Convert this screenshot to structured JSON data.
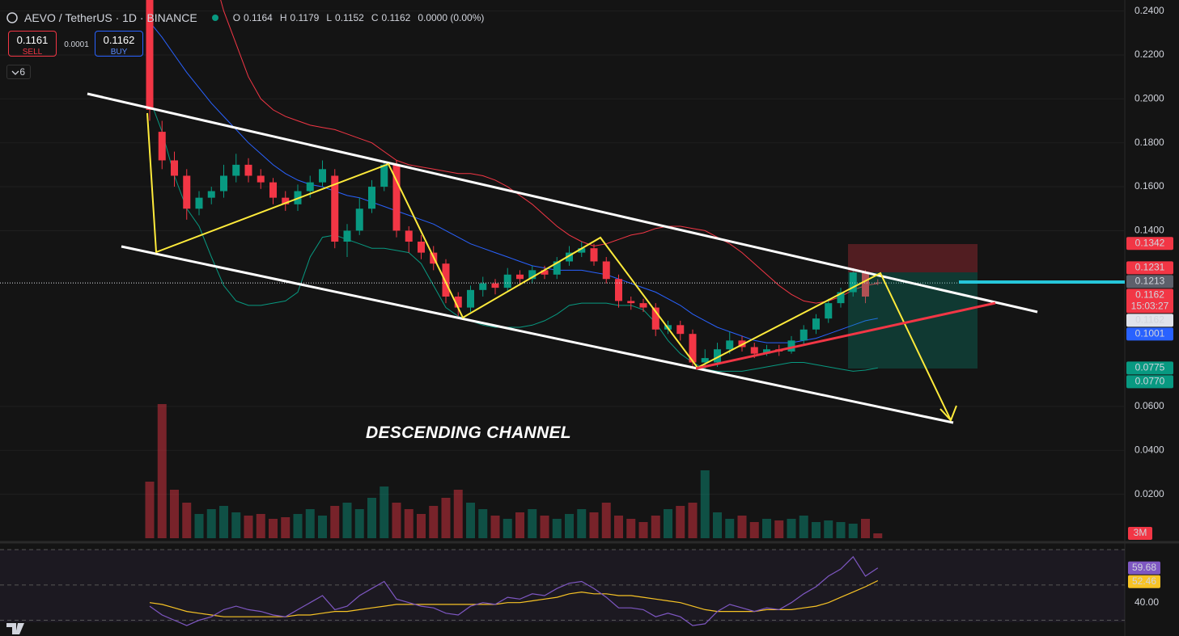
{
  "header": {
    "symbol": "AEVO / TetherUS · 1D · BINANCE",
    "ohlc_labels": [
      "O",
      "H",
      "L",
      "C"
    ],
    "change": "0.0000 (0.00%)"
  },
  "trade": {
    "sell_price": 0.1161,
    "sell": "SELL",
    "spread": 0.0001,
    "buy_price": 0.1162,
    "buy": "BUY",
    "indicators_count": 6
  },
  "chart_data": {
    "type": "candlestick",
    "up_color": "#089981",
    "down_color": "#f23645",
    "ylim": [
      0,
      0.245
    ],
    "yticks": [
      {
        "value": 0.24,
        "label": "0.2400"
      },
      {
        "value": 0.22,
        "label": "0.2200"
      },
      {
        "value": 0.2,
        "label": "0.2000"
      },
      {
        "value": 0.18,
        "label": "0.1800"
      },
      {
        "value": 0.16,
        "label": "0.1600"
      },
      {
        "value": 0.14,
        "label": "0.1400"
      },
      {
        "value": 0.06,
        "label": "0.0600"
      },
      {
        "value": 0.04,
        "label": "0.0400"
      },
      {
        "value": 0.02,
        "label": "0.0200"
      }
    ],
    "grid": true,
    "open": [
      0.245,
      0.185,
      0.172,
      0.165,
      0.15,
      0.155,
      0.158,
      0.165,
      0.17,
      0.165,
      0.162,
      0.155,
      0.152,
      0.158,
      0.162,
      0.165,
      0.135,
      0.14,
      0.15,
      0.16,
      0.17,
      0.14,
      0.135,
      0.13,
      0.125,
      0.11,
      0.105,
      0.113,
      0.116,
      0.114,
      0.12,
      0.118,
      0.122,
      0.12,
      0.126,
      0.13,
      0.132,
      0.126,
      0.118,
      0.108,
      0.107,
      0.105,
      0.095,
      0.097,
      0.093,
      0.08,
      0.08,
      0.086,
      0.09,
      0.087,
      0.084,
      0.086,
      0.085,
      0.09,
      0.095,
      0.1,
      0.107,
      0.112,
      0.121,
      0.1164
    ],
    "high": [
      0.245,
      0.19,
      0.176,
      0.168,
      0.158,
      0.16,
      0.17,
      0.175,
      0.173,
      0.168,
      0.164,
      0.158,
      0.161,
      0.165,
      0.172,
      0.168,
      0.143,
      0.155,
      0.163,
      0.172,
      0.172,
      0.142,
      0.138,
      0.133,
      0.127,
      0.112,
      0.115,
      0.119,
      0.118,
      0.123,
      0.122,
      0.124,
      0.124,
      0.128,
      0.133,
      0.135,
      0.134,
      0.128,
      0.12,
      0.11,
      0.109,
      0.107,
      0.099,
      0.099,
      0.095,
      0.086,
      0.089,
      0.094,
      0.092,
      0.089,
      0.088,
      0.088,
      0.092,
      0.097,
      0.102,
      0.109,
      0.114,
      0.123,
      0.122,
      0.1179
    ],
    "low": [
      0.19,
      0.168,
      0.16,
      0.145,
      0.147,
      0.152,
      0.155,
      0.162,
      0.162,
      0.159,
      0.152,
      0.149,
      0.149,
      0.155,
      0.16,
      0.132,
      0.128,
      0.138,
      0.148,
      0.158,
      0.137,
      0.13,
      0.127,
      0.122,
      0.107,
      0.101,
      0.103,
      0.11,
      0.111,
      0.112,
      0.115,
      0.116,
      0.118,
      0.118,
      0.124,
      0.128,
      0.124,
      0.116,
      0.105,
      0.104,
      0.103,
      0.092,
      0.093,
      0.09,
      0.078,
      0.077,
      0.078,
      0.084,
      0.085,
      0.082,
      0.083,
      0.083,
      0.084,
      0.088,
      0.093,
      0.098,
      0.105,
      0.11,
      0.107,
      0.1152
    ],
    "close": [
      0.195,
      0.172,
      0.165,
      0.15,
      0.155,
      0.158,
      0.165,
      0.17,
      0.165,
      0.162,
      0.155,
      0.152,
      0.158,
      0.162,
      0.168,
      0.135,
      0.14,
      0.15,
      0.16,
      0.17,
      0.14,
      0.135,
      0.13,
      0.125,
      0.11,
      0.105,
      0.113,
      0.116,
      0.114,
      0.12,
      0.118,
      0.122,
      0.12,
      0.126,
      0.13,
      0.132,
      0.126,
      0.118,
      0.108,
      0.107,
      0.105,
      0.095,
      0.097,
      0.093,
      0.08,
      0.082,
      0.086,
      0.09,
      0.087,
      0.084,
      0.086,
      0.085,
      0.09,
      0.095,
      0.1,
      0.107,
      0.112,
      0.121,
      0.11,
      0.1162
    ],
    "bollinger": {
      "upper": {
        "color": "#f23645",
        "values": [
          0.3,
          0.3,
          0.29,
          0.28,
          0.27,
          0.26,
          0.24,
          0.225,
          0.21,
          0.2,
          0.195,
          0.192,
          0.19,
          0.188,
          0.187,
          0.186,
          0.184,
          0.182,
          0.18,
          0.176,
          0.172,
          0.17,
          0.169,
          0.168,
          0.167,
          0.166,
          0.166,
          0.165,
          0.163,
          0.16,
          0.156,
          0.152,
          0.147,
          0.142,
          0.138,
          0.135,
          0.133,
          0.134,
          0.136,
          0.138,
          0.139,
          0.141,
          0.142,
          0.142,
          0.141,
          0.14,
          0.137,
          0.134,
          0.13,
          0.125,
          0.12,
          0.115,
          0.111,
          0.108,
          0.107,
          0.108,
          0.11,
          0.113,
          0.115,
          0.116
        ]
      },
      "middle": {
        "color": "#2962ff",
        "values": [
          0.235,
          0.228,
          0.22,
          0.212,
          0.205,
          0.198,
          0.192,
          0.186,
          0.18,
          0.175,
          0.17,
          0.166,
          0.163,
          0.161,
          0.16,
          0.158,
          0.156,
          0.155,
          0.153,
          0.151,
          0.149,
          0.147,
          0.145,
          0.143,
          0.14,
          0.137,
          0.134,
          0.132,
          0.13,
          0.128,
          0.126,
          0.124,
          0.123,
          0.122,
          0.122,
          0.122,
          0.121,
          0.12,
          0.118,
          0.116,
          0.114,
          0.112,
          0.109,
          0.106,
          0.102,
          0.099,
          0.096,
          0.094,
          0.092,
          0.09,
          0.089,
          0.089,
          0.089,
          0.09,
          0.091,
          0.093,
          0.095,
          0.097,
          0.099,
          0.1001
        ]
      },
      "lower": {
        "color": "#089981",
        "values": [
          0.2,
          0.185,
          0.165,
          0.15,
          0.142,
          0.128,
          0.115,
          0.108,
          0.106,
          0.106,
          0.107,
          0.108,
          0.112,
          0.128,
          0.137,
          0.138,
          0.136,
          0.134,
          0.132,
          0.132,
          0.131,
          0.13,
          0.125,
          0.115,
          0.105,
          0.101,
          0.099,
          0.097,
          0.096,
          0.096,
          0.096,
          0.097,
          0.099,
          0.102,
          0.106,
          0.107,
          0.107,
          0.107,
          0.106,
          0.106,
          0.104,
          0.098,
          0.09,
          0.084,
          0.08,
          0.077,
          0.076,
          0.076,
          0.076,
          0.077,
          0.078,
          0.079,
          0.08,
          0.08,
          0.079,
          0.078,
          0.077,
          0.076,
          0.0765,
          0.0775
        ]
      }
    },
    "price_badges": [
      {
        "value": 0.1342,
        "color": "#f23645"
      },
      {
        "value": 0.1231,
        "color": "#f23645"
      },
      {
        "value": 0.1213,
        "color": "#5d606b"
      },
      {
        "value": 0.1162,
        "color": "#f23645",
        "countdown": "15:03:27"
      },
      {
        "value": 0.1162,
        "color": "#e0e3eb"
      },
      {
        "value": 0.1001,
        "color": "#2962ff"
      },
      {
        "value": 0.0775,
        "color": "#089981"
      },
      {
        "value": {
          "value": 0.077,
          "label": "0.0770"
        },
        "color": "#089981"
      }
    ],
    "annotation": "DESCENDING CHANNEL",
    "volume": {
      "ylim": [
        0,
        100
      ],
      "values": [
        35,
        83,
        30,
        22,
        15,
        18,
        20,
        16,
        14,
        15,
        12,
        13,
        15,
        18,
        14,
        20,
        22,
        18,
        25,
        32,
        22,
        18,
        15,
        20,
        25,
        30,
        22,
        18,
        14,
        12,
        16,
        18,
        14,
        12,
        15,
        18,
        16,
        22,
        14,
        12,
        10,
        14,
        18,
        20,
        22,
        42,
        16,
        12,
        14,
        10,
        12,
        11,
        12,
        14,
        10,
        11,
        10,
        9,
        12,
        3
      ],
      "value_labels": [
        null,
        null,
        null,
        null,
        null,
        null,
        null,
        null,
        null,
        null,
        null,
        null,
        null,
        null,
        null,
        null,
        null,
        null,
        null,
        null,
        null,
        null,
        null,
        null,
        null,
        null,
        null,
        null,
        null,
        null,
        null,
        null,
        null,
        null,
        null,
        null,
        null,
        null,
        null,
        null,
        null,
        null,
        null,
        null,
        null,
        null,
        null,
        null,
        null,
        null,
        null,
        null,
        null,
        null,
        null,
        null,
        null,
        null,
        null,
        "3M"
      ]
    },
    "rsi": {
      "ylim": [
        22,
        71
      ],
      "yticks": [
        {
          "value": 40,
          "label": "40.00"
        }
      ],
      "bands": [
        70,
        50,
        30
      ],
      "rsi": {
        "color": "#7e57c2",
        "values": [
          38,
          33,
          30,
          27,
          30,
          32,
          36,
          38,
          36,
          35,
          33,
          32,
          36,
          40,
          44,
          36,
          38,
          44,
          48,
          52,
          42,
          40,
          38,
          37,
          34,
          33,
          38,
          40,
          39,
          43,
          42,
          45,
          44,
          48,
          51,
          52,
          48,
          43,
          37,
          37,
          36,
          32,
          34,
          32,
          27,
          28,
          35,
          39,
          37,
          35,
          37,
          36,
          40,
          45,
          49,
          55,
          59,
          66,
          55,
          59.68
        ]
      },
      "ma": {
        "color": "#f7c325",
        "values": [
          40,
          39,
          37,
          35,
          34,
          33,
          32,
          32,
          32,
          32,
          32,
          32,
          33,
          33,
          34,
          35,
          35,
          36,
          37,
          38,
          39,
          39,
          39,
          39,
          39,
          39,
          39,
          39,
          39,
          40,
          40,
          41,
          42,
          43,
          45,
          46,
          45,
          45,
          44,
          44,
          43,
          42,
          41,
          40,
          38,
          36,
          35,
          35,
          35,
          35,
          36,
          36,
          36,
          37,
          38,
          40,
          43,
          46,
          49,
          52.46
        ]
      }
    }
  }
}
